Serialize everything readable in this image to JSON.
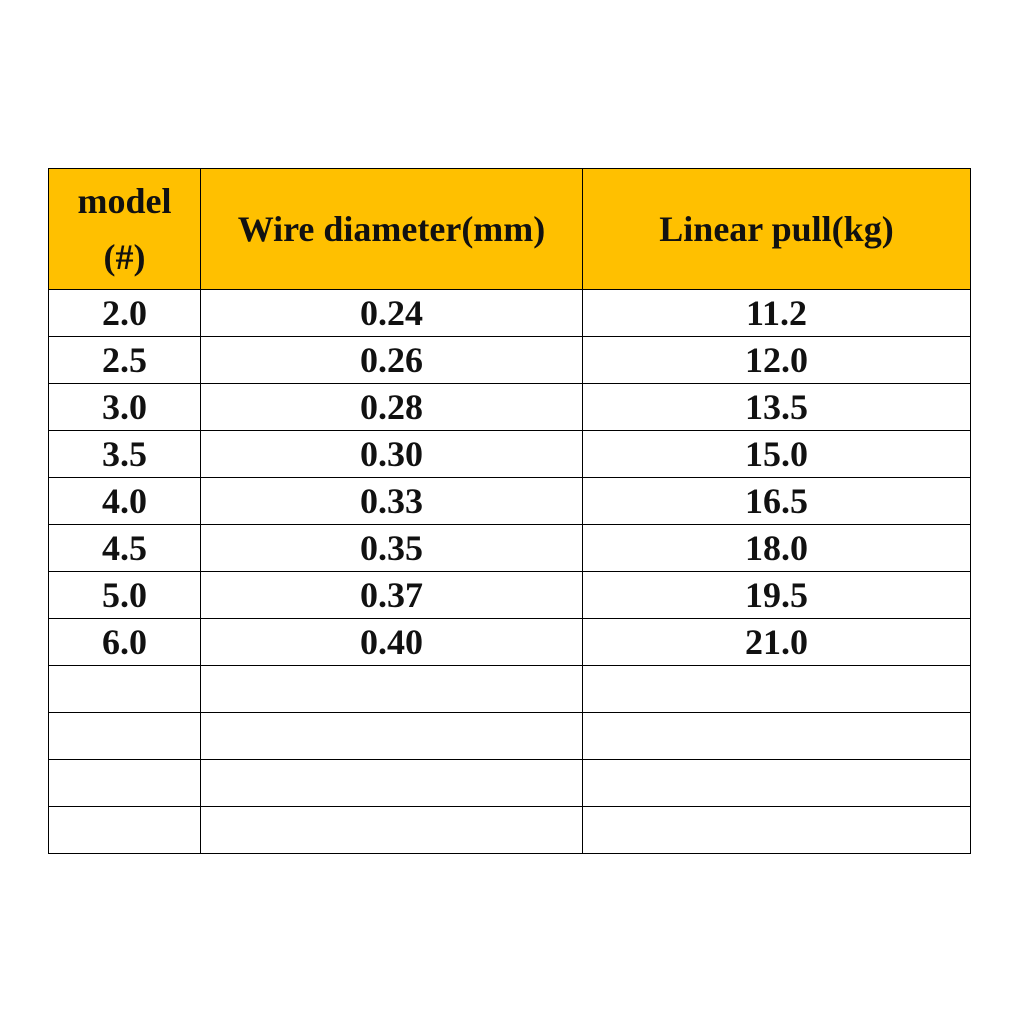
{
  "table": {
    "header": [
      "model (#)",
      "Wire diameter(mm)",
      "Linear pull(kg)"
    ],
    "rows": [
      [
        "2.0",
        "0.24",
        "11.2"
      ],
      [
        "2.5",
        "0.26",
        "12.0"
      ],
      [
        "3.0",
        "0.28",
        "13.5"
      ],
      [
        "3.5",
        "0.30",
        "15.0"
      ],
      [
        "4.0",
        "0.33",
        "16.5"
      ],
      [
        "4.5",
        "0.35",
        "18.0"
      ],
      [
        "5.0",
        "0.37",
        "19.5"
      ],
      [
        "6.0",
        "0.40",
        "21.0"
      ]
    ]
  }
}
